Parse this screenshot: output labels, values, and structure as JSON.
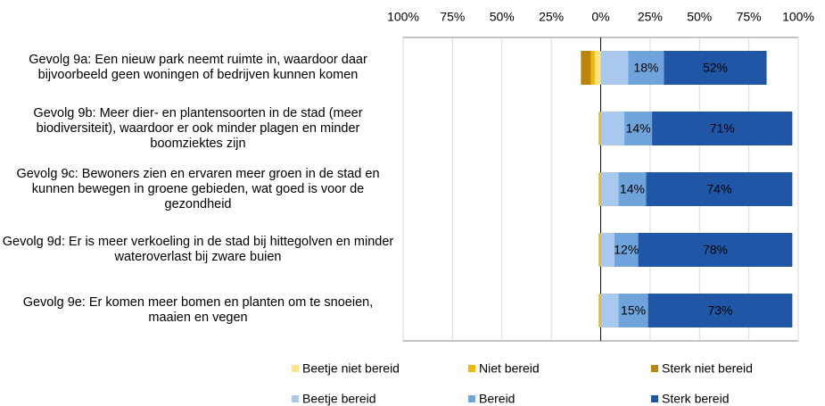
{
  "chart_data": {
    "type": "diverging-stacked-bar",
    "categories": [
      "Gevolg 9a: Een nieuw park neemt ruimte in, waardoor daar bijvoorbeeld geen woningen of bedrijven kunnen komen",
      "Gevolg 9b: Meer dier- en plantensoorten in de stad (meer biodiversiteit), waardoor er ook minder plagen en minder boomziektes zijn",
      "Gevolg 9c: Bewoners zien en ervaren meer groen in de stad en kunnen bewegen in groene gebieden, wat goed is voor de gezondheid",
      "Gevolg 9d: Er is meer verkoeling in de stad bij hittegolven en minder wateroverlast bij zware buien",
      "Gevolg 9e: Er komen meer bomen en planten om te snoeien, maaien en vegen"
    ],
    "series": [
      {
        "name": "Beetje niet bereid",
        "color": "#fde47f",
        "values": [
          -3,
          0,
          0,
          0,
          0
        ]
      },
      {
        "name": "Niet bereid",
        "color": "#f2b705",
        "values": [
          -2,
          -1,
          -1,
          -1,
          -1
        ]
      },
      {
        "name": "Sterk niet bereid",
        "color": "#b8860b",
        "values": [
          -5,
          0,
          0,
          0,
          0
        ]
      },
      {
        "name": "Beetje bereid",
        "color": "#a8c8ee",
        "values": [
          14,
          12,
          9,
          7,
          9
        ]
      },
      {
        "name": "Bereid",
        "color": "#6fa3dc",
        "values": [
          18,
          14,
          14,
          12,
          15
        ],
        "value_labels": [
          "18%",
          "14%",
          "14%",
          "12%",
          "15%"
        ]
      },
      {
        "name": "Sterk bereid",
        "color": "#1f56a5",
        "values": [
          52,
          71,
          74,
          78,
          73
        ],
        "value_labels": [
          "52%",
          "71%",
          "74%",
          "78%",
          "73%"
        ]
      }
    ],
    "xlim": [
      -100,
      100
    ],
    "xticks": [
      {
        "value": -100,
        "label": "100%"
      },
      {
        "value": -75,
        "label": "75%"
      },
      {
        "value": -50,
        "label": "50%"
      },
      {
        "value": -25,
        "label": "25%"
      },
      {
        "value": 0,
        "label": "0%"
      },
      {
        "value": 25,
        "label": "25%"
      },
      {
        "value": 50,
        "label": "50%"
      },
      {
        "value": 75,
        "label": "75%"
      },
      {
        "value": 100,
        "label": "100%"
      }
    ],
    "grid": true
  }
}
